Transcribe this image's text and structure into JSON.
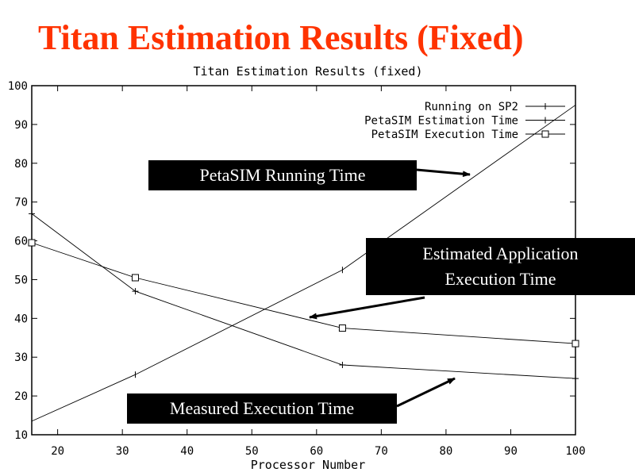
{
  "slide": {
    "title": "Titan Estimation Results (Fixed)"
  },
  "callouts": [
    {
      "text": "PetaSIM Running Time"
    },
    {
      "text": "Estimated Application\nExecution Time"
    },
    {
      "text": "Measured Execution Time"
    }
  ],
  "chart_data": {
    "type": "line",
    "title": "Titan Estimation Results (fixed)",
    "xlabel": "Processor Number",
    "ylabel": "",
    "xlim": [
      16,
      100
    ],
    "ylim": [
      10,
      100
    ],
    "xticks": [
      20,
      30,
      40,
      50,
      60,
      70,
      80,
      90,
      100
    ],
    "yticks": [
      10,
      20,
      30,
      40,
      50,
      60,
      70,
      80,
      90,
      100
    ],
    "grid": false,
    "legend_position": "top-right",
    "series": [
      {
        "name": "Running on SP2",
        "marker": "tick",
        "x": [
          16,
          32,
          64,
          100
        ],
        "y": [
          13.5,
          25.5,
          52.5,
          95
        ]
      },
      {
        "name": "PetaSIM Estimation Time",
        "marker": "plus",
        "x": [
          16,
          32,
          64,
          100
        ],
        "y": [
          67,
          47,
          28,
          24.5
        ]
      },
      {
        "name": "PetaSIM Execution Time",
        "marker": "square",
        "x": [
          16,
          32,
          64,
          100
        ],
        "y": [
          59.5,
          50.5,
          37.5,
          33.5
        ]
      }
    ]
  }
}
